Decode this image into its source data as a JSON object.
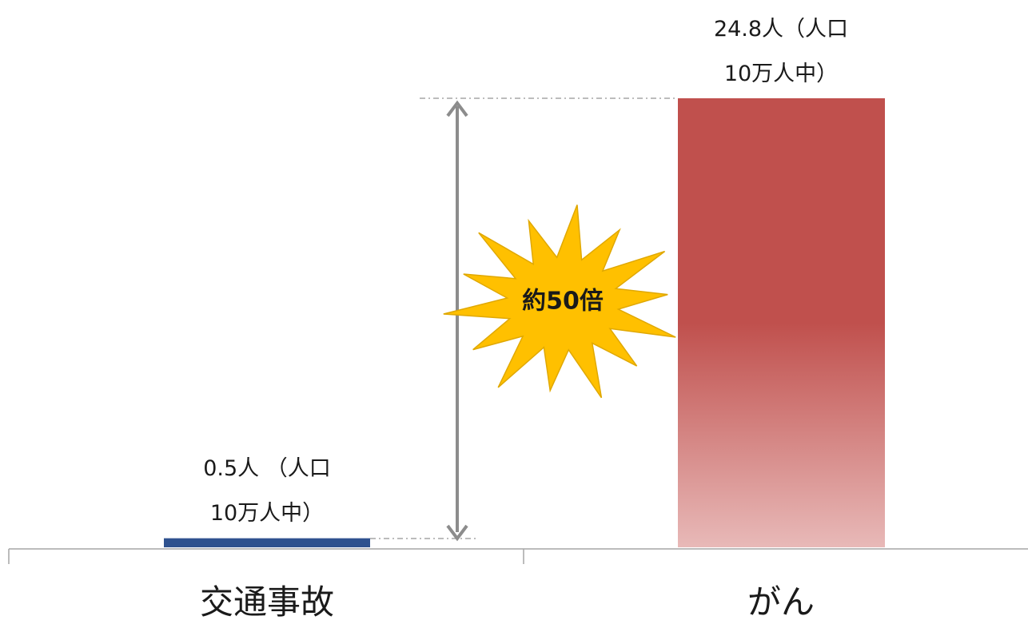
{
  "chart_data": {
    "type": "bar",
    "categories": [
      "交通事故",
      "がん"
    ],
    "values": [
      0.5,
      24.8
    ],
    "colors": [
      "#2f528f",
      "#c0504d"
    ],
    "ylim": [
      0,
      24.8
    ],
    "grid": false,
    "legend": "none",
    "data_labels": [
      [
        "0.5人 （人口",
        "10万人中）"
      ],
      [
        "24.8人（人口",
        "10万人中）"
      ]
    ],
    "annotation": {
      "text": "約50倍",
      "icon": "starburst-icon",
      "fill": "#ffc000",
      "stroke": "#e0a800",
      "arrow_color": "#8c8c8c"
    }
  }
}
